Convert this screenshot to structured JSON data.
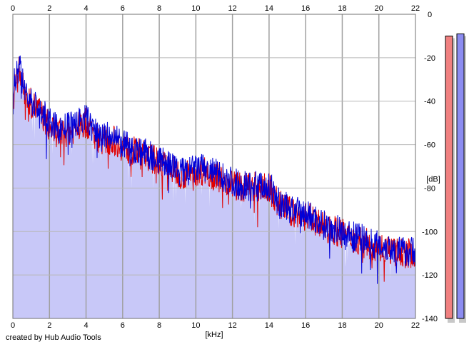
{
  "credit": "created by Hub Audio Tools",
  "chart_data": {
    "type": "line",
    "title": "",
    "xlabel": "[kHz]",
    "ylabel": "[dB]",
    "xlim": [
      0,
      22
    ],
    "ylim": [
      -140,
      0
    ],
    "x_ticks": [
      0,
      2,
      4,
      6,
      8,
      10,
      12,
      14,
      16,
      18,
      20,
      22
    ],
    "y_ticks": [
      0,
      -20,
      -40,
      -60,
      -80,
      -100,
      -120,
      -140
    ],
    "grid": true,
    "fill_color": "#c8c8f8",
    "series": [
      {
        "color": "#e00000",
        "x": [
          0,
          0.1,
          0.2,
          0.3,
          0.4,
          0.5,
          0.7,
          1,
          1.5,
          2,
          2.5,
          3,
          3.5,
          4,
          4.5,
          5,
          5.5,
          6,
          6.5,
          7,
          7.5,
          8,
          8.5,
          9,
          9.5,
          10,
          10.5,
          11,
          11.5,
          12,
          12.5,
          13,
          13.5,
          14,
          14.5,
          15,
          15.5,
          16,
          16.5,
          17,
          17.5,
          18,
          18.5,
          19,
          19.5,
          20,
          20.5,
          21,
          21.5,
          22
        ],
        "values": [
          -40,
          -30,
          -30,
          -27,
          -25,
          -32,
          -37,
          -41,
          -45,
          -52,
          -55,
          -54,
          -52,
          -50,
          -56,
          -58,
          -58,
          -61,
          -63,
          -64,
          -66,
          -68,
          -70,
          -73,
          -74,
          -72,
          -72,
          -74,
          -76,
          -78,
          -80,
          -79,
          -80,
          -80,
          -87,
          -90,
          -92,
          -93,
          -95,
          -98,
          -99,
          -101,
          -103,
          -104,
          -106,
          -107,
          -108,
          -110,
          -110,
          -110
        ]
      },
      {
        "color": "#0000d8",
        "x": [
          0,
          0.1,
          0.2,
          0.3,
          0.4,
          0.5,
          0.7,
          1,
          1.5,
          2,
          2.5,
          3,
          3.5,
          4,
          4.5,
          5,
          5.5,
          6,
          6.5,
          7,
          7.5,
          8,
          8.5,
          9,
          9.5,
          10,
          10.5,
          11,
          11.5,
          12,
          12.5,
          13,
          13.5,
          14,
          14.5,
          15,
          15.5,
          16,
          16.5,
          17,
          17.5,
          18,
          18.5,
          19,
          19.5,
          20,
          20.5,
          21,
          21.5,
          22
        ],
        "values": [
          -38,
          -30,
          -28,
          -25,
          -22,
          -30,
          -36,
          -40,
          -44,
          -50,
          -53,
          -52,
          -50,
          -48,
          -54,
          -56,
          -57,
          -60,
          -62,
          -63,
          -65,
          -67,
          -69,
          -72,
          -73,
          -71,
          -71,
          -73,
          -75,
          -77,
          -79,
          -78,
          -79,
          -79,
          -86,
          -89,
          -91,
          -92,
          -94,
          -97,
          -98,
          -100,
          -102,
          -103,
          -105,
          -106,
          -107,
          -109,
          -109,
          -109
        ]
      }
    ],
    "meters": [
      {
        "color": "#f08080",
        "value_db": -10
      },
      {
        "color": "#8c8cf0",
        "value_db": -9
      }
    ]
  }
}
